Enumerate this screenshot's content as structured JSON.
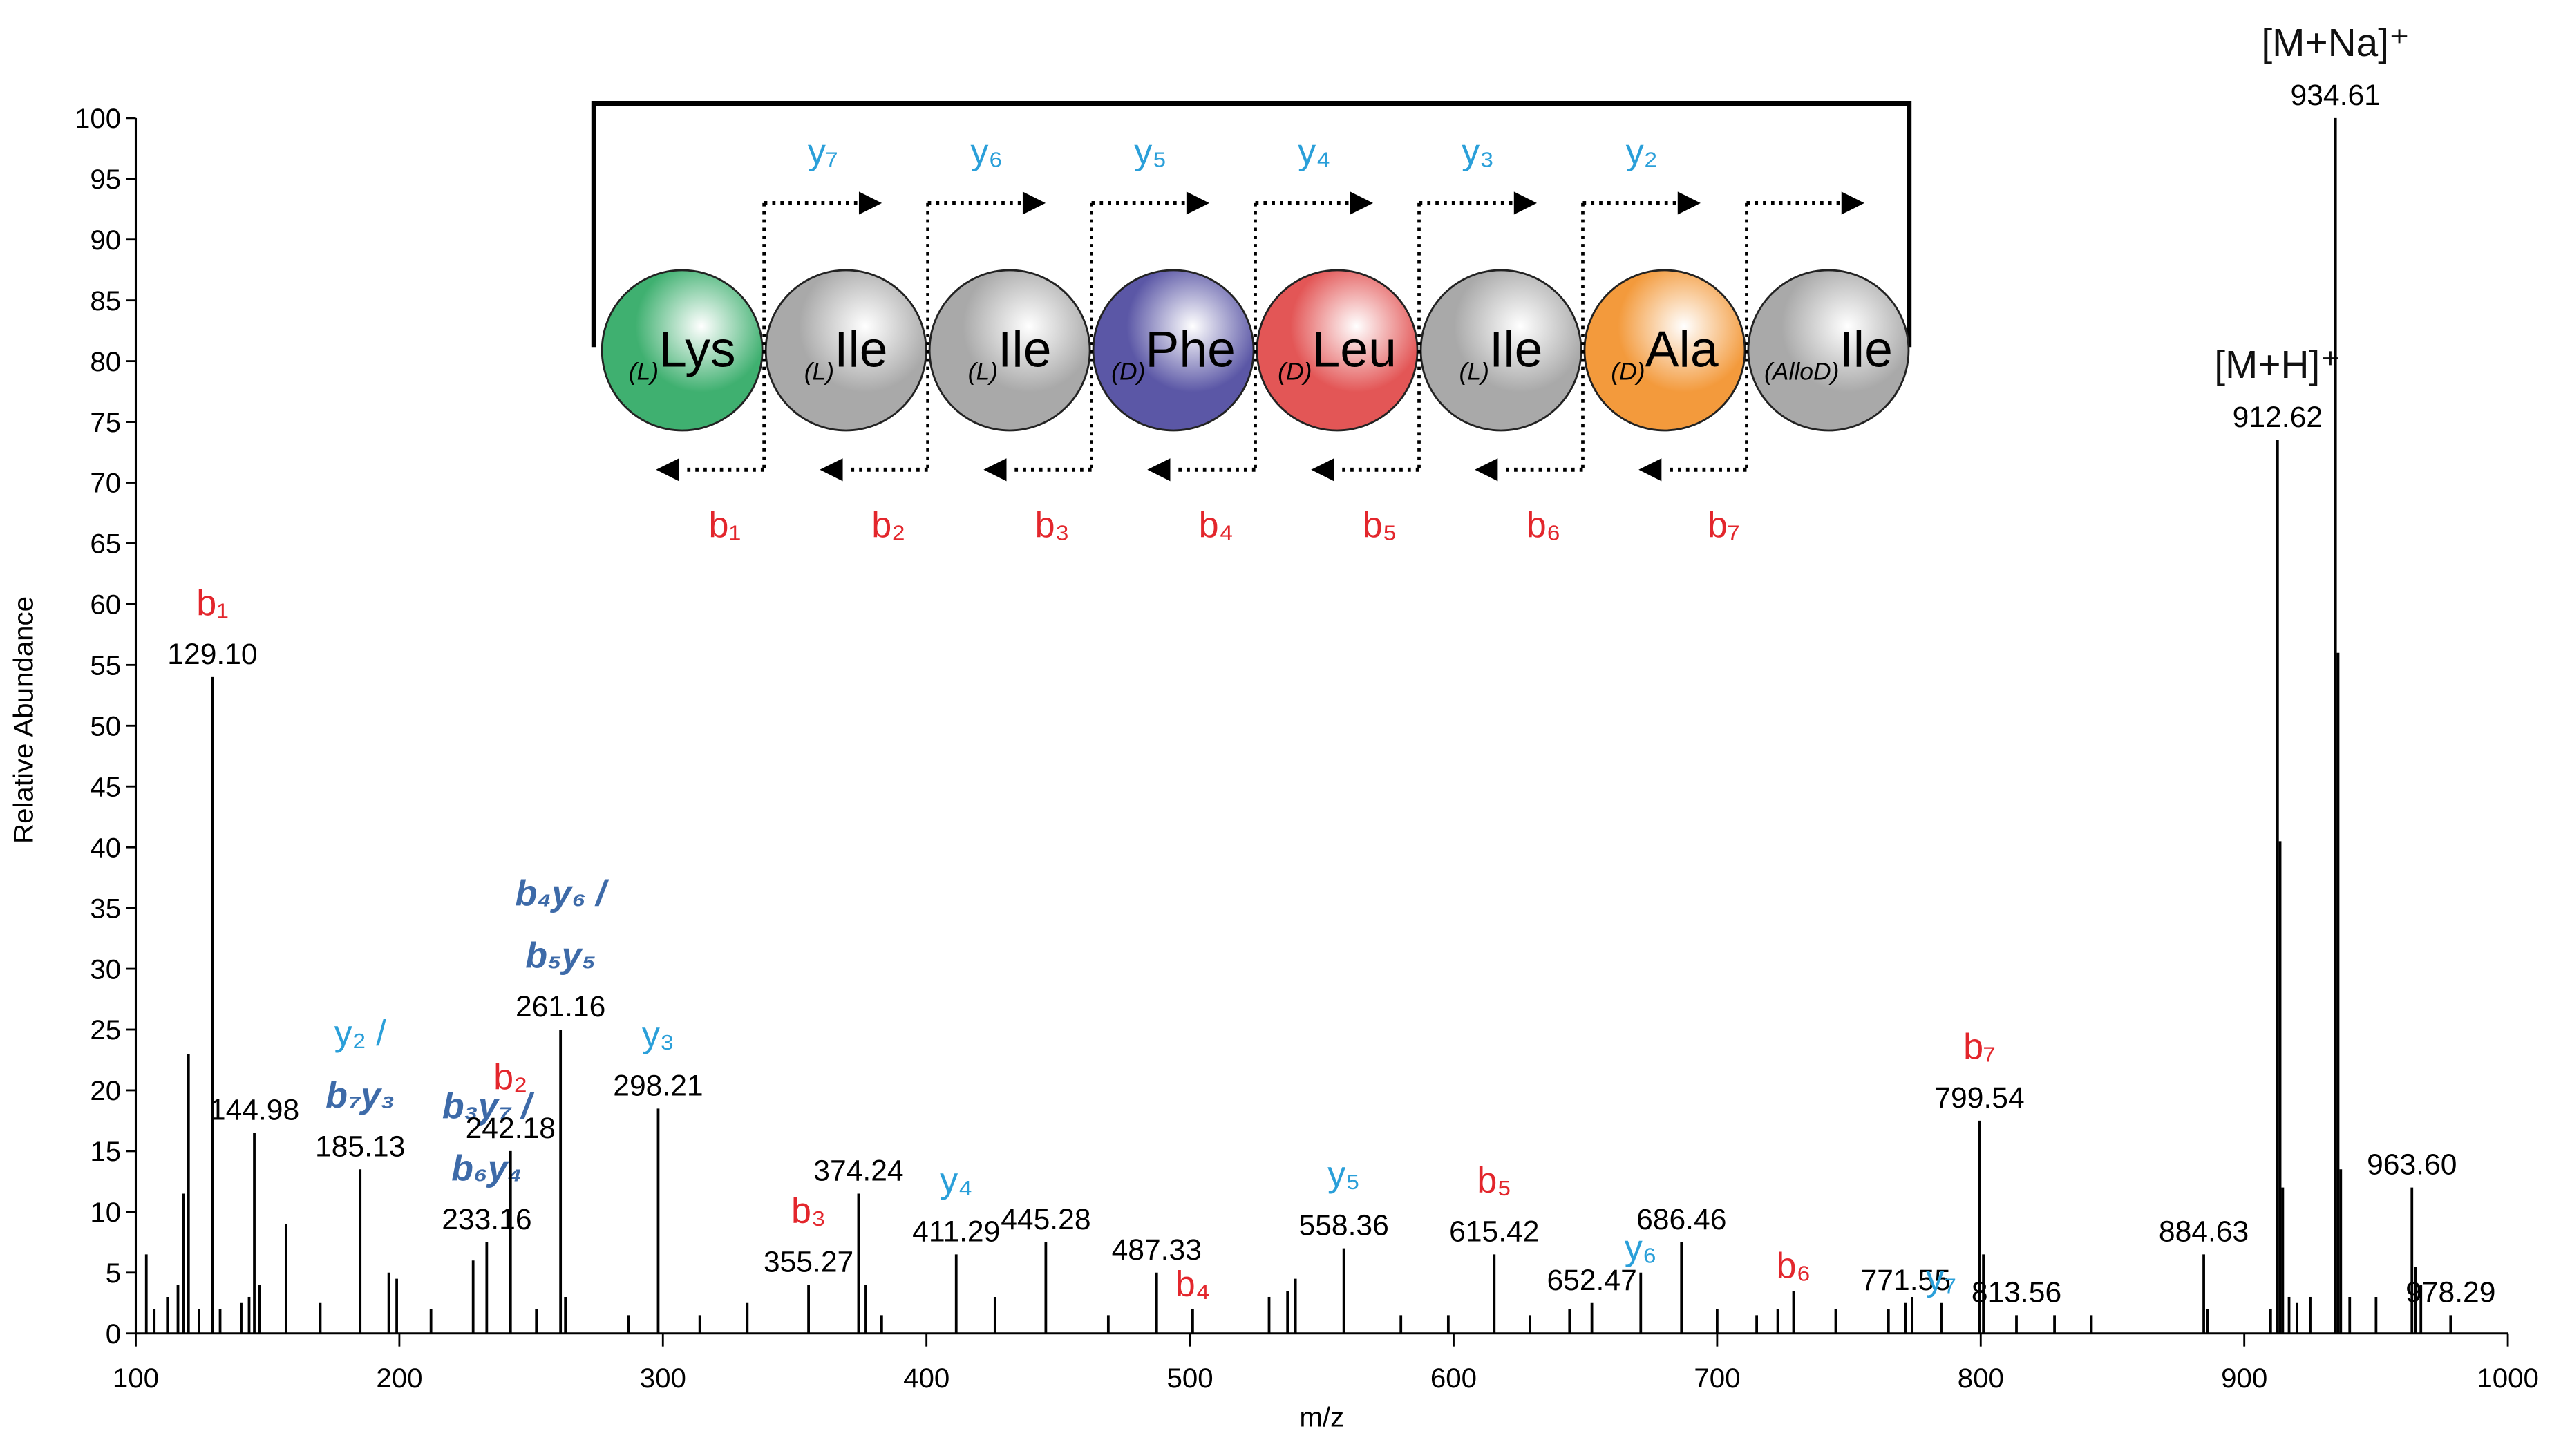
{
  "chart_data": {
    "type": "stem",
    "xlabel": "m/z",
    "ylabel": "Relative Abundance",
    "xlim": [
      100,
      1000
    ],
    "xticks": [
      100,
      200,
      300,
      400,
      500,
      600,
      700,
      800,
      900,
      1000
    ],
    "ylim": [
      0,
      100
    ],
    "yticks": [
      0,
      5,
      10,
      15,
      20,
      25,
      30,
      35,
      40,
      45,
      50,
      55,
      60,
      65,
      70,
      75,
      80,
      85,
      90,
      95,
      100
    ],
    "color": "#000000",
    "ion_colors": {
      "b": "#e3262c",
      "y": "#2a9fd9",
      "mixed": "#3d6aa8",
      "other": "#111111"
    },
    "peaks": [
      {
        "x": 104,
        "value": 6.5
      },
      {
        "x": 107,
        "value": 2
      },
      {
        "x": 112,
        "value": 3
      },
      {
        "x": 116,
        "value": 4
      },
      {
        "x": 118,
        "value": 11.5
      },
      {
        "x": 120,
        "value": 23
      },
      {
        "x": 124,
        "value": 2
      },
      {
        "x": 129.1,
        "value": 54,
        "label": "129.10",
        "ions": [
          "b₁"
        ]
      },
      {
        "x": 132,
        "value": 2
      },
      {
        "x": 140,
        "value": 2.5
      },
      {
        "x": 143,
        "value": 3
      },
      {
        "x": 144.98,
        "value": 16.5,
        "label": "144.98"
      },
      {
        "x": 147,
        "value": 4
      },
      {
        "x": 157,
        "value": 9
      },
      {
        "x": 170,
        "value": 2.5
      },
      {
        "x": 185.13,
        "value": 13.5,
        "label": "185.13",
        "ions": [
          "y₂ /",
          "b₇y₃"
        ]
      },
      {
        "x": 196,
        "value": 5
      },
      {
        "x": 199,
        "value": 4.5
      },
      {
        "x": 212,
        "value": 2
      },
      {
        "x": 228,
        "value": 6
      },
      {
        "x": 233.16,
        "value": 7.5,
        "label": "233.16",
        "ions": [
          "b₃y₇ /",
          "b₆y₄"
        ]
      },
      {
        "x": 242.18,
        "value": 15,
        "label": "242.18",
        "ions": [
          "b₂"
        ]
      },
      {
        "x": 252,
        "value": 2
      },
      {
        "x": 261.16,
        "value": 25,
        "label": "261.16",
        "ions": [
          "b₄y₆ /",
          "b₅y₅"
        ]
      },
      {
        "x": 263,
        "value": 3
      },
      {
        "x": 287,
        "value": 1.5
      },
      {
        "x": 298.21,
        "value": 18.5,
        "label": "298.21",
        "ions": [
          "y₃"
        ]
      },
      {
        "x": 314,
        "value": 1.5
      },
      {
        "x": 332,
        "value": 2.5
      },
      {
        "x": 355.27,
        "value": 4,
        "label": "355.27",
        "ions": [
          "b₃"
        ]
      },
      {
        "x": 374.24,
        "value": 11.5,
        "label": "374.24"
      },
      {
        "x": 377,
        "value": 4
      },
      {
        "x": 383,
        "value": 1.5
      },
      {
        "x": 411.29,
        "value": 6.5,
        "label": "411.29",
        "ions": [
          "y₄"
        ]
      },
      {
        "x": 426,
        "value": 3
      },
      {
        "x": 445.28,
        "value": 7.5,
        "label": "445.28"
      },
      {
        "x": 469,
        "value": 1.5
      },
      {
        "x": 487.33,
        "value": 5,
        "label": "487.33"
      },
      {
        "x": 501,
        "value": 2,
        "ions": [
          "b₄"
        ]
      },
      {
        "x": 530,
        "value": 3
      },
      {
        "x": 537,
        "value": 3.5
      },
      {
        "x": 540,
        "value": 4.5
      },
      {
        "x": 558.36,
        "value": 7,
        "label": "558.36",
        "ions": [
          "y₅"
        ]
      },
      {
        "x": 580,
        "value": 1.5
      },
      {
        "x": 598,
        "value": 1.5
      },
      {
        "x": 615.42,
        "value": 6.5,
        "label": "615.42",
        "ions": [
          "b₅"
        ]
      },
      {
        "x": 629,
        "value": 1.5
      },
      {
        "x": 644,
        "value": 2
      },
      {
        "x": 652.47,
        "value": 2.5,
        "label": "652.47"
      },
      {
        "x": 671,
        "value": 5,
        "ions": [
          "y₆"
        ]
      },
      {
        "x": 686.46,
        "value": 7.5,
        "label": "686.46"
      },
      {
        "x": 700,
        "value": 2
      },
      {
        "x": 715,
        "value": 1.5
      },
      {
        "x": 723,
        "value": 2
      },
      {
        "x": 729,
        "value": 3.5,
        "ions": [
          "b₆"
        ]
      },
      {
        "x": 745,
        "value": 2
      },
      {
        "x": 765,
        "value": 2
      },
      {
        "x": 771.55,
        "value": 2.5,
        "label": "771.55"
      },
      {
        "x": 774,
        "value": 3
      },
      {
        "x": 785,
        "value": 2.5,
        "ions": [
          "y₇"
        ]
      },
      {
        "x": 799.54,
        "value": 17.5,
        "label": "799.54",
        "ions": [
          "b₇"
        ]
      },
      {
        "x": 801,
        "value": 6.5
      },
      {
        "x": 813.56,
        "value": 1.5,
        "label": "813.56"
      },
      {
        "x": 828,
        "value": 1.5
      },
      {
        "x": 842,
        "value": 1.5
      },
      {
        "x": 884.63,
        "value": 6.5,
        "label": "884.63"
      },
      {
        "x": 886,
        "value": 2
      },
      {
        "x": 910,
        "value": 2
      },
      {
        "x": 912.62,
        "value": 73.5,
        "label": "912.62",
        "ions": [
          "[M+H]⁺"
        ]
      },
      {
        "x": 913.6,
        "value": 40.5
      },
      {
        "x": 914.6,
        "value": 12
      },
      {
        "x": 917,
        "value": 3
      },
      {
        "x": 920,
        "value": 2.5
      },
      {
        "x": 925,
        "value": 3
      },
      {
        "x": 934.61,
        "value": 100,
        "label": "934.61",
        "ions": [
          "[M+Na]⁺"
        ]
      },
      {
        "x": 935.6,
        "value": 56
      },
      {
        "x": 936.6,
        "value": 13.5
      },
      {
        "x": 940,
        "value": 3
      },
      {
        "x": 950,
        "value": 3
      },
      {
        "x": 963.6,
        "value": 12,
        "label": "963.60"
      },
      {
        "x": 965,
        "value": 5.5
      },
      {
        "x": 967,
        "value": 4
      },
      {
        "x": 978.29,
        "value": 1.5,
        "label": "978.29"
      }
    ],
    "inset": {
      "residues": [
        {
          "config": "(L)",
          "name": "Lys",
          "color": "#3fb070"
        },
        {
          "config": "(L)",
          "name": "Ile",
          "color": "#a9a9a9"
        },
        {
          "config": "(L)",
          "name": "Ile",
          "color": "#a9a9a9"
        },
        {
          "config": "(D)",
          "name": "Phe",
          "color": "#5b57a6"
        },
        {
          "config": "(D)",
          "name": "Leu",
          "color": "#e35656"
        },
        {
          "config": "(L)",
          "name": "Ile",
          "color": "#a9a9a9"
        },
        {
          "config": "(D)",
          "name": "Ala",
          "color": "#f39a3c"
        },
        {
          "config": "(AlloD)",
          "name": "Ile",
          "color": "#a9a9a9"
        }
      ],
      "y_ions": [
        "y₇",
        "y₆",
        "y₅",
        "y₄",
        "y₃",
        "y₂",
        null
      ],
      "b_ions": [
        "b₁",
        "b₂",
        "b₃",
        "b₄",
        "b₅",
        "b₆",
        "b₇"
      ]
    }
  }
}
